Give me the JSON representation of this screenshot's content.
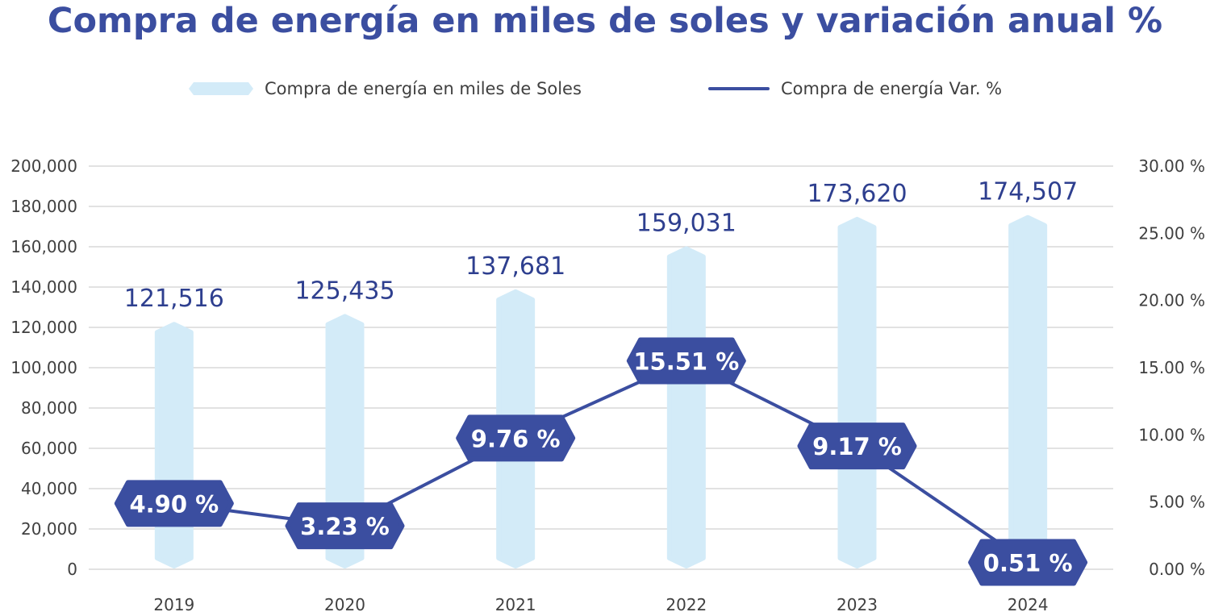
{
  "chart_data": {
    "type": "bar",
    "title": "Compra de energía en miles de soles y variación anual %",
    "categories": [
      "2019",
      "2020",
      "2021",
      "2022",
      "2023",
      "2024"
    ],
    "series": [
      {
        "name": "Compra de energía en miles de Soles",
        "type": "bar",
        "axis": "left",
        "values": [
          121516,
          125435,
          137681,
          159031,
          173620,
          174507
        ],
        "labels": [
          "121,516",
          "125,435",
          "137,681",
          "159,031",
          "173,620",
          "174,507"
        ],
        "color": "#d3ebf8"
      },
      {
        "name": "Compra de energía Var. %",
        "type": "line",
        "axis": "right",
        "values": [
          4.9,
          3.23,
          9.76,
          15.51,
          9.17,
          0.51
        ],
        "labels": [
          "4.90 %",
          "3.23 %",
          "9.76 %",
          "15.51 %",
          "9.17 %",
          "0.51 %"
        ],
        "color": "#3b4ea0"
      }
    ],
    "y_left": {
      "range": [
        0,
        200000
      ],
      "ticks": [
        0,
        20000,
        40000,
        60000,
        80000,
        100000,
        120000,
        140000,
        160000,
        180000,
        200000
      ],
      "tick_labels": [
        "0",
        "20,000",
        "40,000",
        "60,000",
        "80,000",
        "100,000",
        "120,000",
        "140,000",
        "160,000",
        "180,000",
        "200,000"
      ]
    },
    "y_right": {
      "range": [
        0,
        30
      ],
      "ticks": [
        0,
        5,
        10,
        15,
        20,
        25,
        30
      ],
      "tick_labels": [
        "0.00 %",
        "5.00 %",
        "10.00 %",
        "15.00 %",
        "20.00 %",
        "25.00 %",
        "30.00 %"
      ]
    },
    "grid": true,
    "legend_position": "top-center"
  }
}
